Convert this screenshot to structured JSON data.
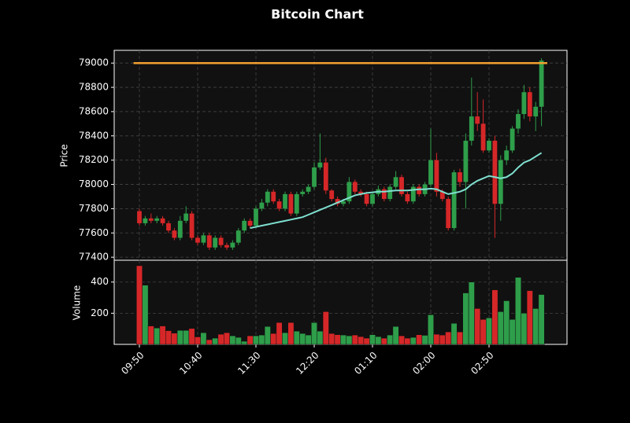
{
  "chart_data": {
    "type": "candlestick",
    "title": "Bitcoin Chart",
    "categories": [
      "09:50",
      null,
      null,
      null,
      null,
      null,
      null,
      null,
      null,
      null,
      "10:40",
      null,
      null,
      null,
      null,
      null,
      null,
      null,
      null,
      null,
      "11:30",
      null,
      null,
      null,
      null,
      null,
      null,
      null,
      null,
      null,
      "12:20",
      null,
      null,
      null,
      null,
      null,
      null,
      null,
      null,
      null,
      "01:10",
      null,
      null,
      null,
      null,
      null,
      null,
      null,
      null,
      null,
      "02:00",
      null,
      null,
      null,
      null,
      null,
      null,
      null,
      null,
      null,
      "02:50",
      null,
      null,
      null,
      null,
      null,
      null,
      null,
      null,
      null
    ],
    "open": [
      77780,
      77680,
      77720,
      77700,
      77720,
      77680,
      77620,
      77560,
      77700,
      77760,
      77560,
      77520,
      77580,
      77480,
      77560,
      77500,
      77480,
      77520,
      77620,
      77700,
      77660,
      77800,
      77850,
      77940,
      77860,
      77800,
      77920,
      77760,
      77920,
      77940,
      77980,
      78140,
      78180,
      77950,
      77880,
      77840,
      77860,
      78020,
      77940,
      77920,
      77840,
      77920,
      77960,
      77880,
      77980,
      78060,
      77920,
      77860,
      77980,
      77920,
      78000,
      78200,
      77940,
      77880,
      77640,
      78100,
      78020,
      78360,
      78560,
      78500,
      78280,
      78360,
      77840,
      78200,
      78280,
      78460,
      78580,
      78760,
      78560,
      78640
    ],
    "high": [
      77800,
      77740,
      77760,
      77740,
      77740,
      77700,
      77640,
      77740,
      77820,
      77780,
      77580,
      77600,
      77600,
      77580,
      77580,
      77520,
      77540,
      77640,
      77720,
      77720,
      77820,
      77880,
      77960,
      77960,
      77880,
      77940,
      77940,
      77940,
      77960,
      78000,
      78180,
      78420,
      78220,
      77960,
      77900,
      77880,
      78060,
      78040,
      77960,
      77940,
      77940,
      77990,
      77980,
      78000,
      78110,
      78080,
      77940,
      78000,
      78000,
      78020,
      78460,
      78260,
      77960,
      77900,
      78120,
      78130,
      78420,
      78880,
      78760,
      78700,
      78380,
      78400,
      78240,
      78320,
      78480,
      78620,
      78820,
      78800,
      78680,
      79040
    ],
    "low": [
      77660,
      77660,
      77680,
      77680,
      77660,
      77600,
      77540,
      77540,
      77680,
      77540,
      77500,
      77500,
      77460,
      77460,
      77480,
      77460,
      77460,
      77500,
      77600,
      77640,
      77640,
      77780,
      77820,
      77840,
      77780,
      77780,
      77740,
      77740,
      77900,
      77920,
      77960,
      78120,
      77920,
      77860,
      77820,
      77820,
      77840,
      77920,
      77900,
      77820,
      77820,
      77900,
      77860,
      77860,
      77960,
      77900,
      77840,
      77840,
      77900,
      77900,
      77980,
      77900,
      77860,
      77620,
      77620,
      77980,
      77800,
      78320,
      78440,
      78260,
      78260,
      77560,
      77700,
      78160,
      78260,
      78420,
      78540,
      78520,
      78440,
      78480
    ],
    "close": [
      77680,
      77720,
      77700,
      77720,
      77680,
      77620,
      77560,
      77700,
      77760,
      77560,
      77520,
      77580,
      77480,
      77560,
      77500,
      77480,
      77520,
      77620,
      77700,
      77660,
      77800,
      77850,
      77940,
      77860,
      77800,
      77920,
      77760,
      77920,
      77940,
      77980,
      78140,
      78180,
      77950,
      77880,
      77840,
      77860,
      78020,
      77940,
      77920,
      77840,
      77920,
      77960,
      77880,
      77980,
      78060,
      77920,
      77860,
      77980,
      77920,
      78000,
      78200,
      77940,
      77880,
      77640,
      78100,
      78020,
      78360,
      78560,
      78500,
      78280,
      78360,
      77840,
      78200,
      78280,
      78460,
      78580,
      78760,
      78560,
      78640,
      79020
    ],
    "volume": [
      505,
      380,
      118,
      105,
      118,
      88,
      72,
      90,
      90,
      102,
      48,
      75,
      30,
      40,
      65,
      75,
      55,
      45,
      20,
      55,
      55,
      60,
      115,
      70,
      140,
      75,
      140,
      85,
      70,
      60,
      140,
      85,
      210,
      70,
      62,
      60,
      55,
      60,
      50,
      40,
      62,
      50,
      40,
      60,
      115,
      55,
      40,
      45,
      62,
      58,
      190,
      65,
      60,
      80,
      135,
      80,
      330,
      400,
      230,
      160,
      170,
      350,
      210,
      280,
      160,
      430,
      200,
      345,
      230,
      320
    ],
    "moving_average": [
      null,
      null,
      null,
      null,
      null,
      null,
      null,
      null,
      null,
      null,
      null,
      null,
      null,
      null,
      null,
      null,
      null,
      null,
      null,
      77640,
      77650,
      77660,
      77670,
      77680,
      77690,
      77700,
      77710,
      77720,
      77730,
      77750,
      77770,
      77790,
      77810,
      77830,
      77850,
      77870,
      77890,
      77910,
      77920,
      77930,
      77935,
      77940,
      77940,
      77945,
      77950,
      77950,
      77950,
      77955,
      77960,
      77960,
      77965,
      77960,
      77940,
      77920,
      77930,
      77940,
      77960,
      78000,
      78030,
      78050,
      78070,
      78060,
      78050,
      78060,
      78090,
      78140,
      78180,
      78200,
      78230,
      78260
    ],
    "ma_color": "#7fe0d0",
    "hline": {
      "value": 79000,
      "color": "#f0a030"
    },
    "up_color": "#2e9e4a",
    "down_color": "#d62728",
    "ylabel": "Price",
    "ylim": [
      77375,
      79105
    ],
    "yticks": [
      77400,
      77600,
      77800,
      78000,
      78200,
      78400,
      78600,
      78800,
      79000
    ],
    "volume_label": "Volume",
    "volume_lim": [
      0,
      540
    ],
    "volume_ticks": [
      200,
      400
    ],
    "grid": true
  }
}
